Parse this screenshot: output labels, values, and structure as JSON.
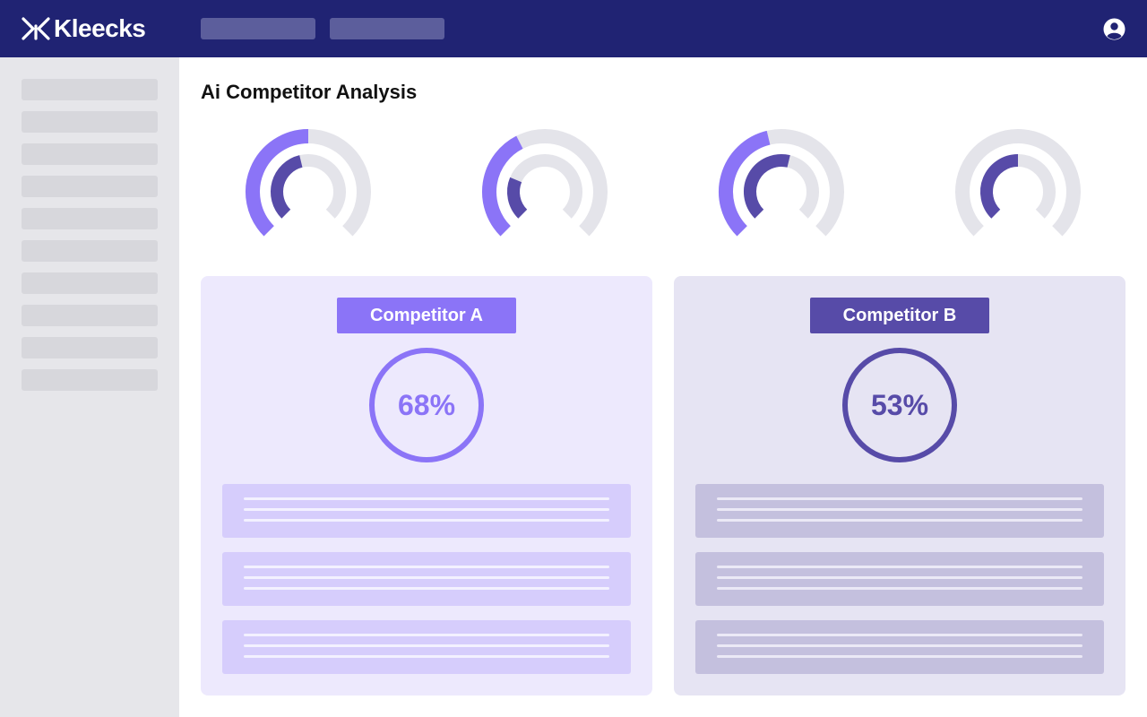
{
  "brand": {
    "name": "Kleecks",
    "colors": {
      "navy": "#202373",
      "accent": "#8b74f7",
      "accent_dark": "#574ba8",
      "track": "#e4e4ea"
    }
  },
  "header": {
    "logo_icon": "kleecks-x-logo",
    "nav_items": [
      "",
      ""
    ],
    "avatar_icon": "user-circle-icon"
  },
  "sidebar": {
    "items": [
      "",
      "",
      "",
      "",
      "",
      "",
      "",
      "",
      "",
      ""
    ]
  },
  "page": {
    "title": "Ai Competitor Analysis"
  },
  "gauges": [
    {
      "outer_fill": 0.5,
      "inner_fill": 0.45
    },
    {
      "outer_fill": 0.4,
      "inner_fill": 0.25
    },
    {
      "outer_fill": 0.45,
      "inner_fill": 0.55
    },
    {
      "outer_fill": 0.0,
      "inner_fill": 0.5
    }
  ],
  "competitors": [
    {
      "label": "Competitor A",
      "score": "68%"
    },
    {
      "label": "Competitor B",
      "score": "53%"
    }
  ]
}
